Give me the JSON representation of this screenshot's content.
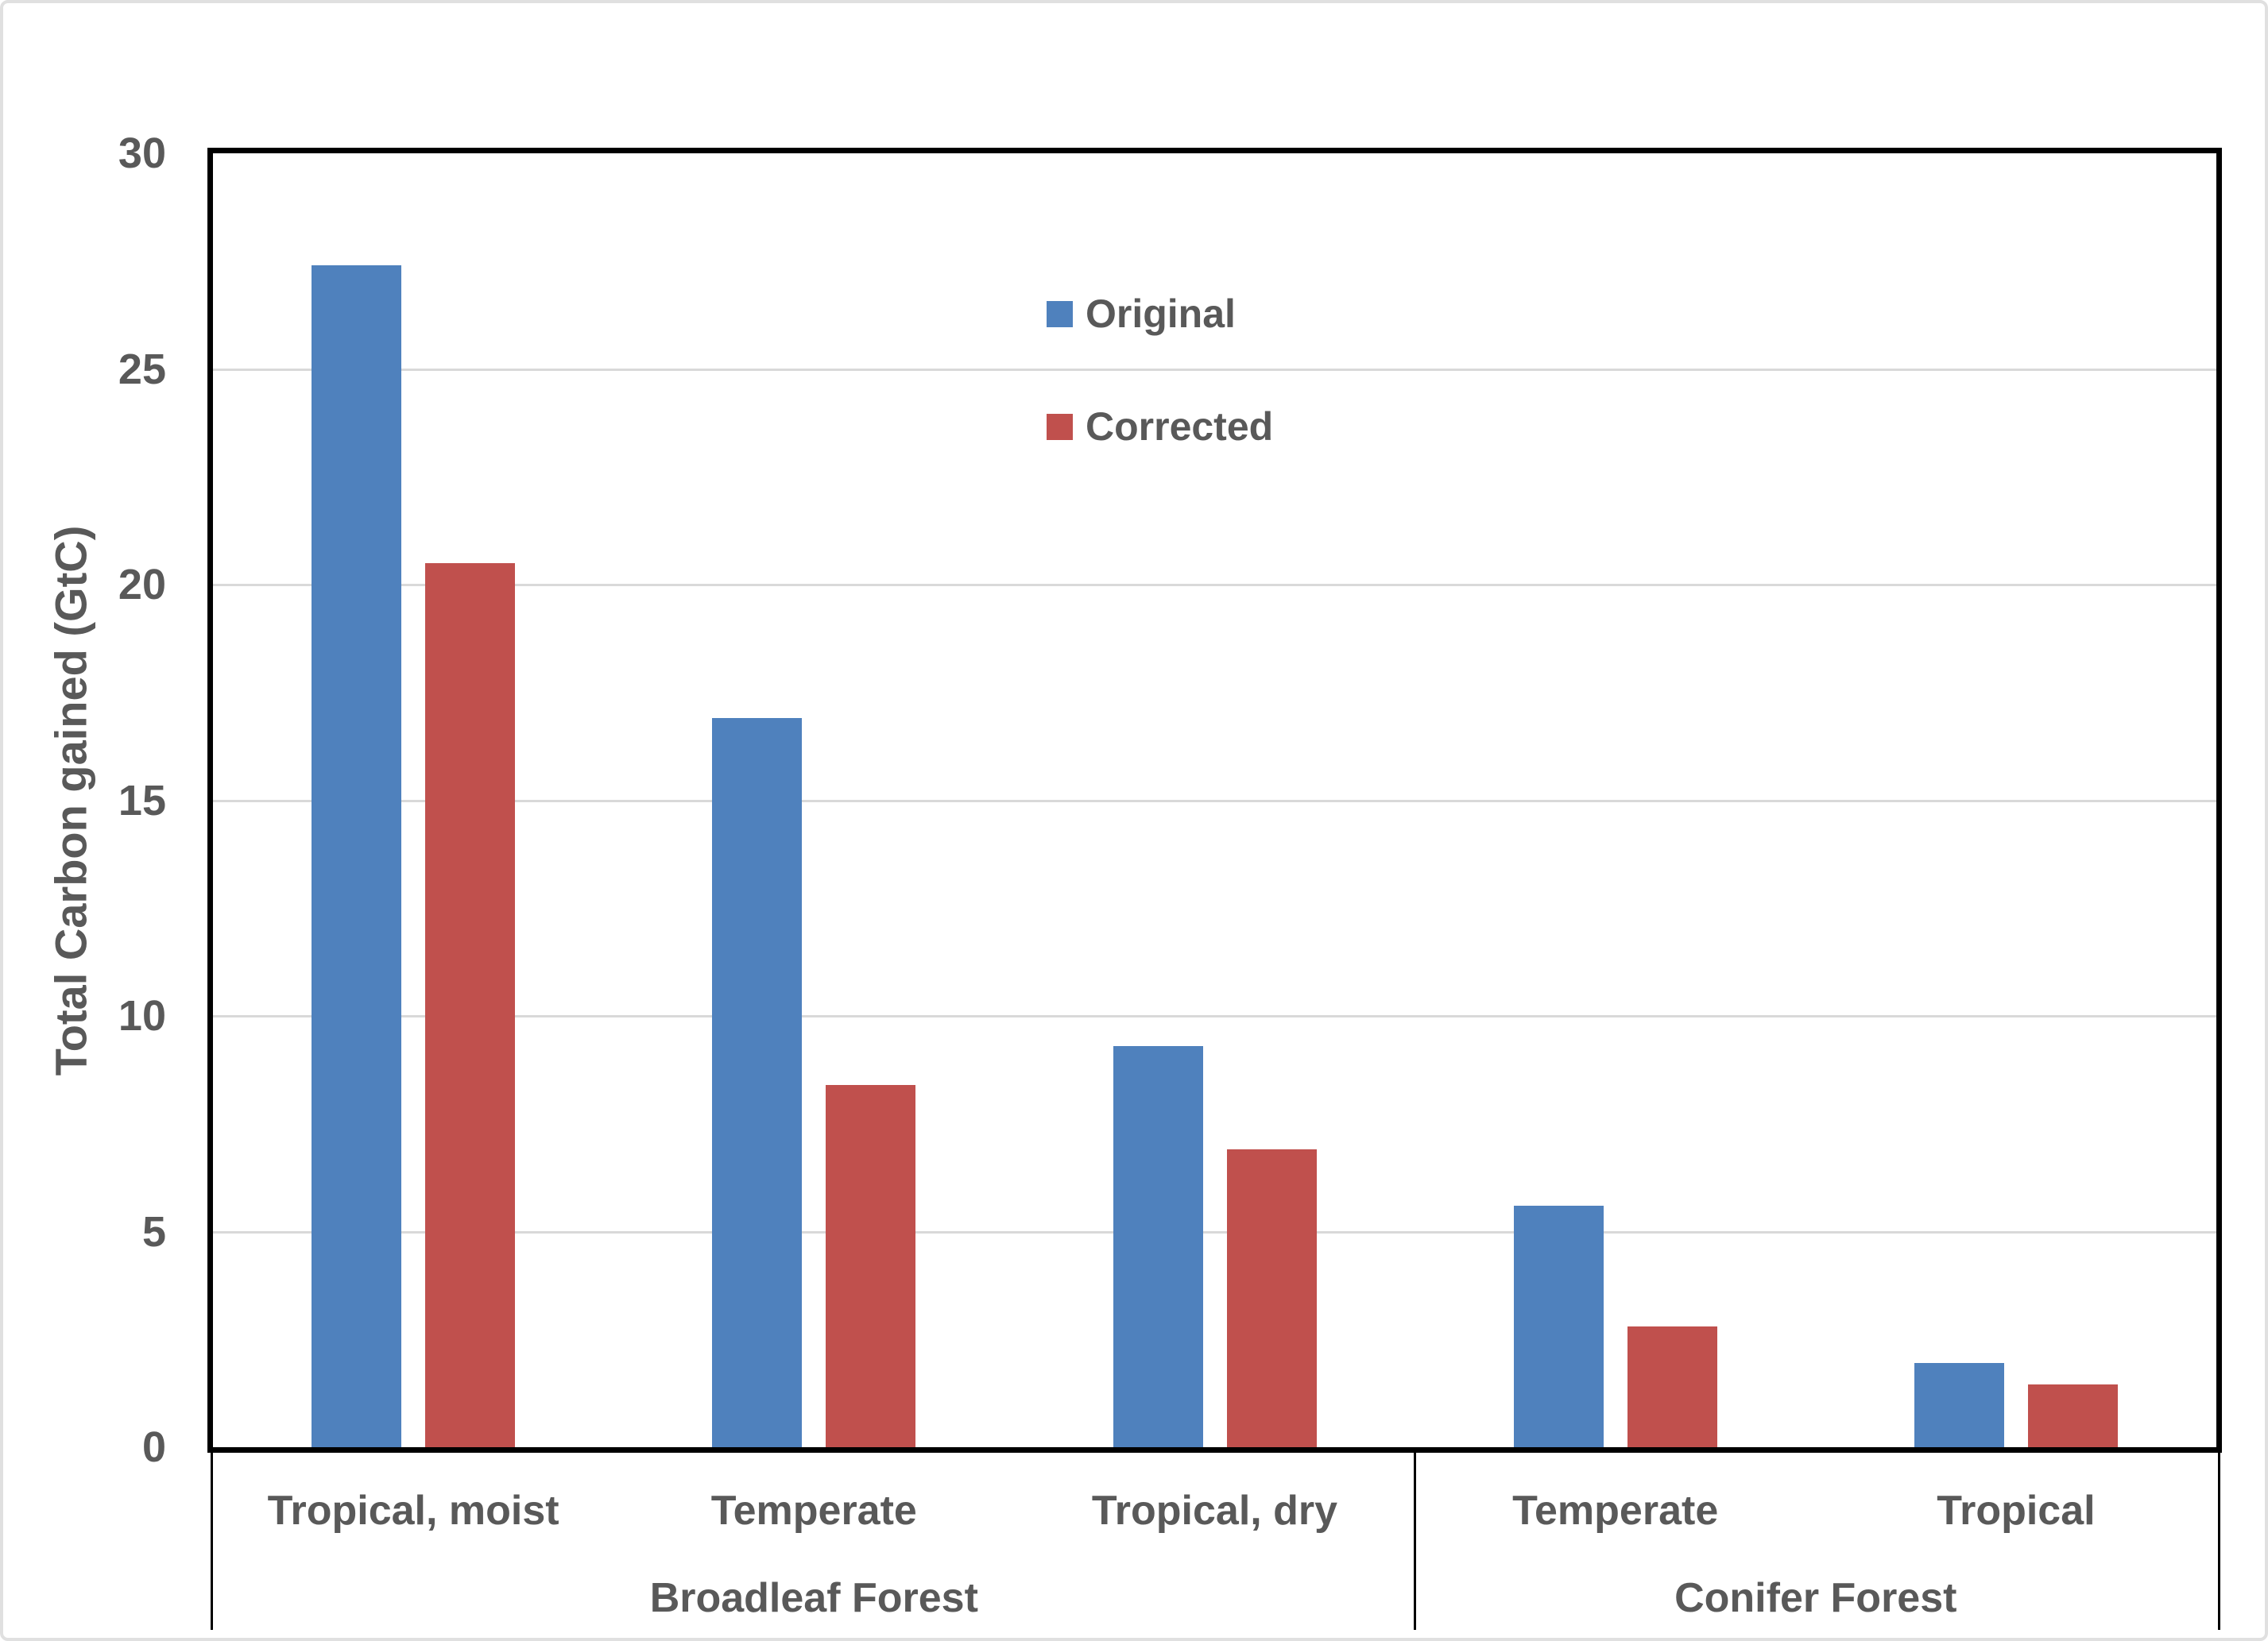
{
  "chart_data": {
    "type": "bar",
    "title": "",
    "xlabel": "",
    "ylabel": "Total Carbon gained (GtC)",
    "ylim": [
      0,
      30
    ],
    "yticks": [
      0,
      5,
      10,
      15,
      20,
      25,
      30
    ],
    "grid": "horizontal-major",
    "legend_position": "inside-top-center",
    "categories": [
      "Tropical, moist",
      "Temperate",
      "Tropical, dry",
      "Temperate",
      "Tropical"
    ],
    "groups": [
      {
        "label": "Broadleaf Forest",
        "span": 3
      },
      {
        "label": "Conifer Forest",
        "span": 2
      }
    ],
    "series": [
      {
        "name": "Original",
        "color": "#4f81bd",
        "values": [
          27.4,
          16.9,
          9.3,
          5.6,
          1.95
        ]
      },
      {
        "name": "Corrected",
        "color": "#c0504d",
        "values": [
          20.5,
          8.4,
          6.9,
          2.8,
          1.45
        ]
      }
    ]
  },
  "colors": {
    "text": "#595959",
    "gridline": "#d9d9d9",
    "axis": "#000000",
    "background": "#ffffff",
    "frame": "#e0e0e0"
  }
}
